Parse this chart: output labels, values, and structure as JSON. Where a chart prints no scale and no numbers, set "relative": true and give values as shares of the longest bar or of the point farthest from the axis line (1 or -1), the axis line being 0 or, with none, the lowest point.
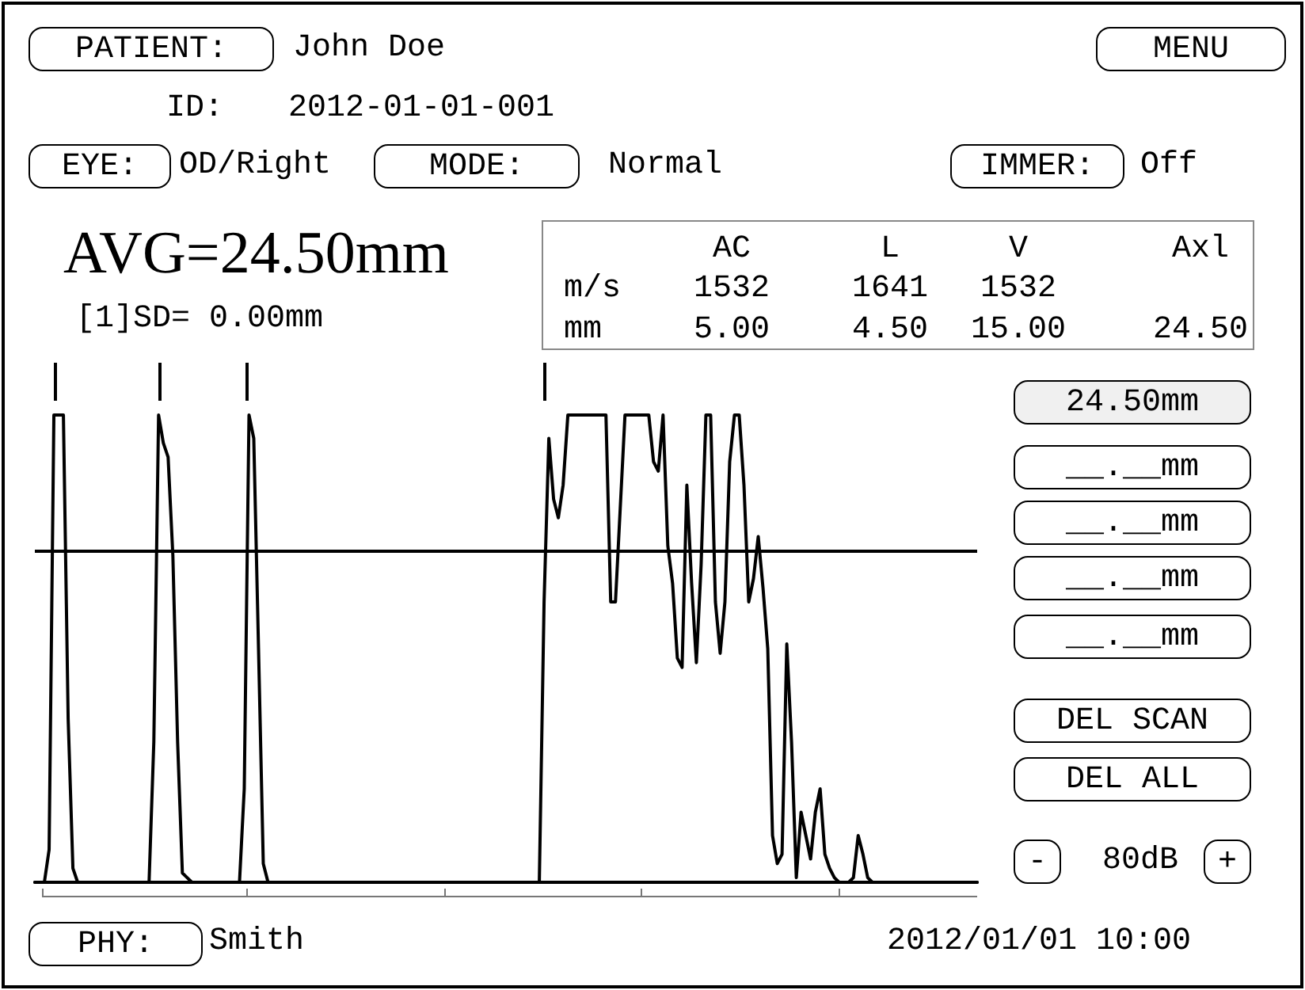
{
  "chart_data": {
    "type": "line",
    "relative": true,
    "tick_labels": false,
    "grid": false,
    "line_style": "solid",
    "color": "#000000",
    "categories": [
      null,
      null,
      null,
      null,
      null,
      null,
      null,
      null,
      null,
      null,
      null,
      null,
      null,
      null,
      null,
      null,
      null,
      null,
      null,
      null,
      null,
      null,
      null,
      null,
      null,
      null,
      null,
      null,
      null,
      null,
      null,
      null,
      null,
      null,
      null,
      null,
      null,
      null,
      null,
      null,
      null,
      null,
      null,
      null,
      null,
      null,
      null,
      null,
      null,
      null,
      null,
      null,
      null,
      null,
      null,
      null,
      null,
      null,
      null,
      null,
      null,
      null,
      null,
      null,
      null,
      null,
      null,
      null,
      null,
      null,
      null,
      null,
      null,
      null,
      null,
      null,
      null,
      null,
      null,
      null,
      null,
      null,
      null,
      null,
      null,
      null,
      null,
      null,
      null,
      null,
      null,
      null,
      null,
      null,
      null,
      null,
      null,
      null,
      null,
      null,
      null,
      null,
      null,
      null,
      null,
      null,
      null,
      null,
      null,
      null,
      null,
      null,
      null,
      null,
      null,
      null,
      null,
      null,
      null,
      null,
      null,
      null,
      null,
      null,
      null,
      null,
      null,
      null,
      null,
      null,
      null,
      null,
      null,
      null,
      null,
      null,
      null,
      null,
      null,
      null,
      null,
      null,
      null,
      null,
      null,
      null,
      null,
      null,
      null,
      null,
      null,
      null,
      null,
      null,
      null,
      null,
      null,
      null,
      null,
      null,
      null,
      null,
      null,
      null,
      null,
      null,
      null,
      null,
      null,
      null,
      null,
      null,
      null,
      null,
      null,
      null,
      null,
      null,
      null,
      null,
      null,
      null,
      null,
      null,
      null,
      null,
      null,
      null,
      null,
      null,
      null,
      null,
      null,
      null,
      null,
      null,
      null,
      null,
      null
    ],
    "values": [
      0,
      0,
      0,
      0.07,
      1,
      1,
      1,
      0.35,
      0.03,
      0,
      0,
      0,
      0,
      0,
      0,
      0,
      0,
      0,
      0,
      0,
      0,
      0,
      0,
      0,
      0,
      0.3,
      1,
      0.94,
      0.91,
      0.7,
      0.3,
      0.02,
      0.01,
      0,
      0,
      0,
      0,
      0,
      0,
      0,
      0,
      0,
      0,
      0,
      0.2,
      1,
      0.95,
      0.5,
      0.04,
      0,
      0,
      0,
      0,
      0,
      0,
      0,
      0,
      0,
      0,
      0,
      0,
      0,
      0,
      0,
      0,
      0,
      0,
      0,
      0,
      0,
      0,
      0,
      0,
      0,
      0,
      0,
      0,
      0,
      0,
      0,
      0,
      0,
      0,
      0,
      0,
      0,
      0,
      0,
      0,
      0,
      0,
      0,
      0,
      0,
      0,
      0,
      0,
      0,
      0,
      0,
      0,
      0,
      0,
      0,
      0,
      0,
      0,
      0.6,
      0.95,
      0.82,
      0.78,
      0.85,
      1,
      1,
      1,
      1,
      1,
      1,
      1,
      1,
      1,
      0.6,
      0.6,
      0.8,
      1,
      1,
      1,
      1,
      1,
      1,
      0.9,
      0.88,
      1,
      0.72,
      0.64,
      0.48,
      0.46,
      0.85,
      0.64,
      0.47,
      0.68,
      1,
      1,
      0.6,
      0.49,
      0.6,
      0.9,
      1,
      1,
      0.85,
      0.6,
      0.65,
      0.74,
      0.63,
      0.5,
      0.1,
      0.04,
      0.06,
      0.51,
      0.3,
      0.01,
      0.15,
      0.1,
      0.05,
      0.15,
      0.2,
      0.06,
      0.03,
      0.01,
      0,
      0,
      0,
      0.01,
      0.1,
      0.06,
      0.01,
      0,
      0,
      0,
      0,
      0,
      0,
      0,
      0,
      0,
      0,
      0,
      0,
      0,
      0,
      0,
      0,
      0,
      0,
      0,
      0,
      0,
      0,
      0
    ],
    "ref_lines": [
      {
        "axis": "y",
        "value": 0.71,
        "color": "#000000"
      }
    ],
    "annotations": [
      "PATIENT:",
      "John Doe",
      "MENU",
      "ID:",
      "2012-01-01-001",
      "EYE:",
      "OD/Right",
      "MODE:",
      "Normal",
      "IMMER:",
      "Off",
      "AVG=24.50mm",
      "[1]SD= 0.00mm",
      "AC",
      "L",
      "V",
      "Axl",
      "m/s",
      "1532",
      "1641",
      "1532",
      "mm",
      "5.00",
      "4.50",
      "15.00",
      "24.50",
      "24.50mm",
      "__.__mm",
      "__.__mm",
      "__.__mm",
      "__.__mm",
      "DEL SCAN",
      "DEL ALL",
      "-",
      "80dB",
      "+",
      "PHY:",
      "Smith",
      "2012/01/01 10:00"
    ]
  }
}
